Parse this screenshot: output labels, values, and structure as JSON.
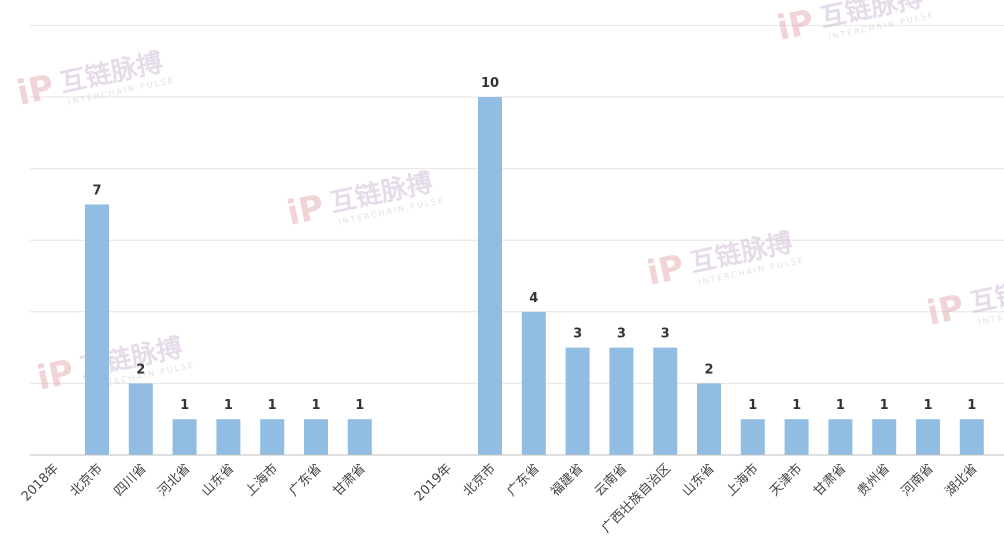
{
  "watermark": {
    "brand_cn": "互链脉搏",
    "brand_en": "INTERCHAIN PULSE",
    "logo": "iP"
  },
  "chart_data": {
    "type": "bar",
    "title": "",
    "xlabel": "",
    "ylabel": "",
    "ylim": [
      0,
      10
    ],
    "grid": true,
    "legend": "none",
    "bar_color": "#92bde3",
    "groups": [
      {
        "label": "2018年",
        "categories": [
          "北京市",
          "四川省",
          "河北省",
          "山东省",
          "上海市",
          "广东省",
          "甘肃省"
        ],
        "values": [
          7,
          2,
          1,
          1,
          1,
          1,
          1
        ]
      },
      {
        "label": "2019年",
        "categories": [
          "北京市",
          "广东省",
          "福建省",
          "云南省",
          "广西壮族自治区",
          "山东省",
          "上海市",
          "天津市",
          "甘肃省",
          "贵州省",
          "河南省",
          "湖北省"
        ],
        "values": [
          10,
          4,
          3,
          3,
          3,
          2,
          1,
          1,
          1,
          1,
          1,
          1
        ]
      }
    ]
  }
}
